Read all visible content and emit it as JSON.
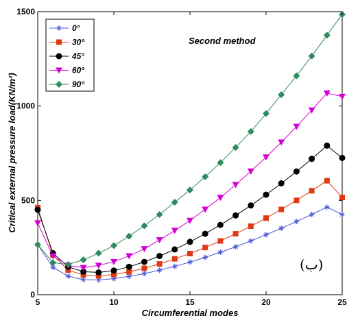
{
  "chart_data": {
    "type": "line",
    "xlabel": "Circumferential modes",
    "ylabel": "Critical external pressure load(KN/m²)",
    "xlim": [
      5,
      25
    ],
    "ylim": [
      0,
      1500
    ],
    "xticks": [
      "5",
      "10",
      "15",
      "20",
      "25"
    ],
    "yticks": [
      "0",
      "500",
      "1000",
      "1500"
    ],
    "grid": false,
    "legend_position": "top-left",
    "annotation": "Second method",
    "panel_tag": "(ب)",
    "x": [
      5,
      6,
      7,
      8,
      9,
      10,
      11,
      12,
      13,
      14,
      15,
      16,
      17,
      18,
      19,
      20,
      21,
      22,
      23,
      24,
      25
    ],
    "series": [
      {
        "name": "0°",
        "color": "#4a56d8",
        "marker": "star",
        "values": [
          265,
          145,
          98,
          80,
          78,
          85,
          97,
          112,
          130,
          150,
          173,
          198,
          225,
          254,
          285,
          318,
          352,
          388,
          425,
          464,
          425
        ]
      },
      {
        "name": "30°",
        "color": "#e03a14",
        "marker": "square",
        "values": [
          462,
          210,
          130,
          105,
          100,
          107,
          121,
          140,
          163,
          190,
          218,
          250,
          285,
          323,
          363,
          406,
          452,
          500,
          551,
          604,
          515
        ]
      },
      {
        "name": "45°",
        "color": "#000000",
        "marker": "circle",
        "values": [
          450,
          220,
          148,
          122,
          118,
          128,
          148,
          174,
          205,
          240,
          280,
          323,
          370,
          420,
          473,
          530,
          590,
          653,
          720,
          790,
          725
        ]
      },
      {
        "name": "60°",
        "color": "#d400d4",
        "marker": "triangle-down",
        "values": [
          380,
          205,
          155,
          143,
          155,
          175,
          205,
          243,
          290,
          340,
          393,
          452,
          515,
          583,
          654,
          729,
          808,
          891,
          978,
          1068,
          1050
        ]
      },
      {
        "name": "90°",
        "color": "#2f8a5e",
        "marker": "diamond",
        "values": [
          265,
          170,
          160,
          185,
          220,
          260,
          310,
          365,
          425,
          490,
          555,
          625,
          700,
          780,
          865,
          960,
          1060,
          1160,
          1265,
          1375,
          1485
        ]
      }
    ]
  }
}
